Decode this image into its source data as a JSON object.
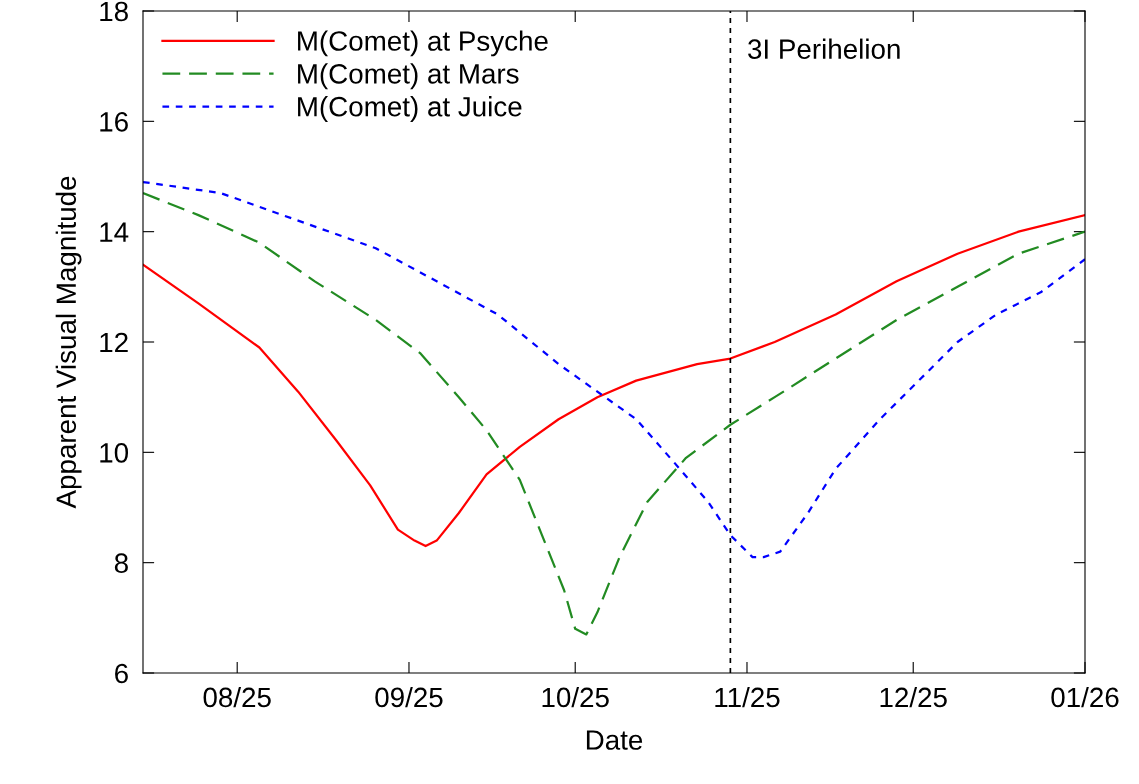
{
  "chart_data": {
    "type": "line",
    "xlabel": "Date",
    "ylabel": "Apparent Visual Magnitude",
    "xlim": [
      "2025-07-15",
      "2026-01-01"
    ],
    "ylim": [
      6,
      18
    ],
    "yticks": [
      6,
      8,
      10,
      12,
      14,
      16,
      18
    ],
    "xticks": [
      {
        "value": "2025-08-01",
        "label": "08/25"
      },
      {
        "value": "2025-09-01",
        "label": "09/25"
      },
      {
        "value": "2025-10-01",
        "label": "10/25"
      },
      {
        "value": "2025-11-01",
        "label": "11/25"
      },
      {
        "value": "2025-12-01",
        "label": "12/25"
      },
      {
        "value": "2026-01-01",
        "label": "01/26"
      }
    ],
    "grid": false,
    "legend": "top left",
    "marker": "none",
    "ref_lines": [
      {
        "axis": "x",
        "value": "2025-10-29",
        "label": "3I Perihelion",
        "color": "#000000",
        "line_style": "dashed"
      }
    ],
    "series": [
      {
        "name": "M(Comet) at Psyche",
        "color": "#ff0000",
        "line_style": "solid",
        "x": [
          "2025-07-15",
          "2025-07-25",
          "2025-08-05",
          "2025-08-12",
          "2025-08-19",
          "2025-08-25",
          "2025-08-30",
          "2025-09-02",
          "2025-09-04",
          "2025-09-06",
          "2025-09-10",
          "2025-09-15",
          "2025-09-21",
          "2025-09-28",
          "2025-10-05",
          "2025-10-12",
          "2025-10-23",
          "2025-10-29",
          "2025-11-06",
          "2025-11-17",
          "2025-11-28",
          "2025-12-09",
          "2025-12-20",
          "2026-01-01"
        ],
        "values": [
          13.4,
          12.7,
          11.9,
          11.1,
          10.2,
          9.4,
          8.6,
          8.4,
          8.3,
          8.4,
          8.9,
          9.6,
          10.1,
          10.6,
          11.0,
          11.3,
          11.6,
          11.7,
          12.0,
          12.5,
          13.1,
          13.6,
          14.0,
          14.3
        ]
      },
      {
        "name": "M(Comet) at Mars",
        "color": "#228b22",
        "line_style": "dashed",
        "x": [
          "2025-07-15",
          "2025-07-25",
          "2025-08-05",
          "2025-08-15",
          "2025-08-26",
          "2025-09-03",
          "2025-09-10",
          "2025-09-15",
          "2025-09-21",
          "2025-09-25",
          "2025-09-29",
          "2025-10-01",
          "2025-10-03",
          "2025-10-05",
          "2025-10-09",
          "2025-10-14",
          "2025-10-21",
          "2025-10-29",
          "2025-11-06",
          "2025-11-17",
          "2025-11-28",
          "2025-12-09",
          "2025-12-20",
          "2026-01-01"
        ],
        "values": [
          14.7,
          14.3,
          13.8,
          13.1,
          12.4,
          11.8,
          11.0,
          10.4,
          9.5,
          8.5,
          7.5,
          6.8,
          6.7,
          7.1,
          8.1,
          9.1,
          9.9,
          10.5,
          11.0,
          11.7,
          12.4,
          13.0,
          13.6,
          14.0
        ]
      },
      {
        "name": "M(Comet) at Juice",
        "color": "#0000ff",
        "line_style": "dotted",
        "x": [
          "2025-07-15",
          "2025-07-29",
          "2025-08-12",
          "2025-08-26",
          "2025-09-06",
          "2025-09-17",
          "2025-09-28",
          "2025-10-05",
          "2025-10-12",
          "2025-10-19",
          "2025-10-25",
          "2025-10-29",
          "2025-11-02",
          "2025-11-04",
          "2025-11-07",
          "2025-11-12",
          "2025-11-17",
          "2025-11-25",
          "2025-12-02",
          "2025-12-09",
          "2025-12-16",
          "2025-12-24",
          "2026-01-01"
        ],
        "values": [
          14.9,
          14.7,
          14.2,
          13.7,
          13.1,
          12.5,
          11.6,
          11.1,
          10.6,
          9.8,
          9.1,
          8.5,
          8.1,
          8.1,
          8.2,
          8.9,
          9.7,
          10.6,
          11.3,
          12.0,
          12.5,
          12.9,
          13.5
        ]
      }
    ]
  }
}
